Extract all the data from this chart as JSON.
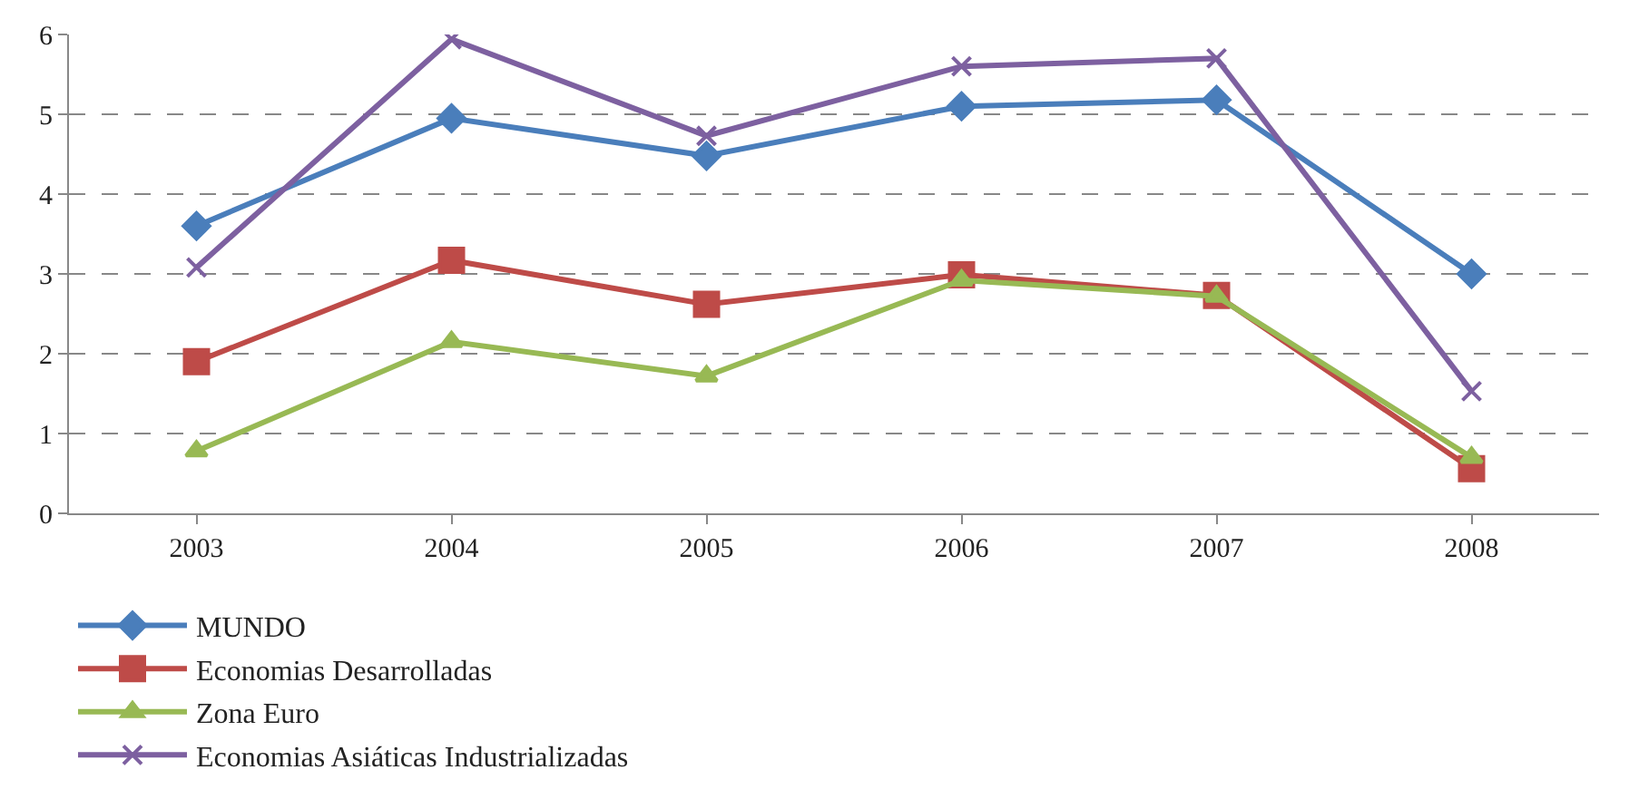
{
  "chart_data": {
    "type": "line",
    "categories": [
      "2003",
      "2004",
      "2005",
      "2006",
      "2007",
      "2008"
    ],
    "series": [
      {
        "name": "MUNDO",
        "color": "#4a7ebb",
        "marker": "diamond",
        "values": [
          3.6,
          4.95,
          4.48,
          5.1,
          5.18,
          3.0
        ]
      },
      {
        "name": "Economias Desarrolladas",
        "color": "#be4b48",
        "marker": "square",
        "values": [
          1.9,
          3.17,
          2.62,
          2.99,
          2.73,
          0.56
        ]
      },
      {
        "name": "Zona Euro",
        "color": "#98b954",
        "marker": "triangle",
        "values": [
          0.78,
          2.15,
          1.72,
          2.92,
          2.72,
          0.7
        ]
      },
      {
        "name": "Economias Asiáticas Industrializadas",
        "color": "#7d60a0",
        "marker": "cross",
        "values": [
          3.08,
          5.94,
          4.73,
          5.6,
          5.7,
          1.53
        ]
      }
    ],
    "ylim": [
      0,
      6
    ],
    "yticks": [
      0,
      1,
      2,
      3,
      4,
      5,
      6
    ],
    "grid": "y",
    "legend": "bottom",
    "line_style": "solid"
  }
}
